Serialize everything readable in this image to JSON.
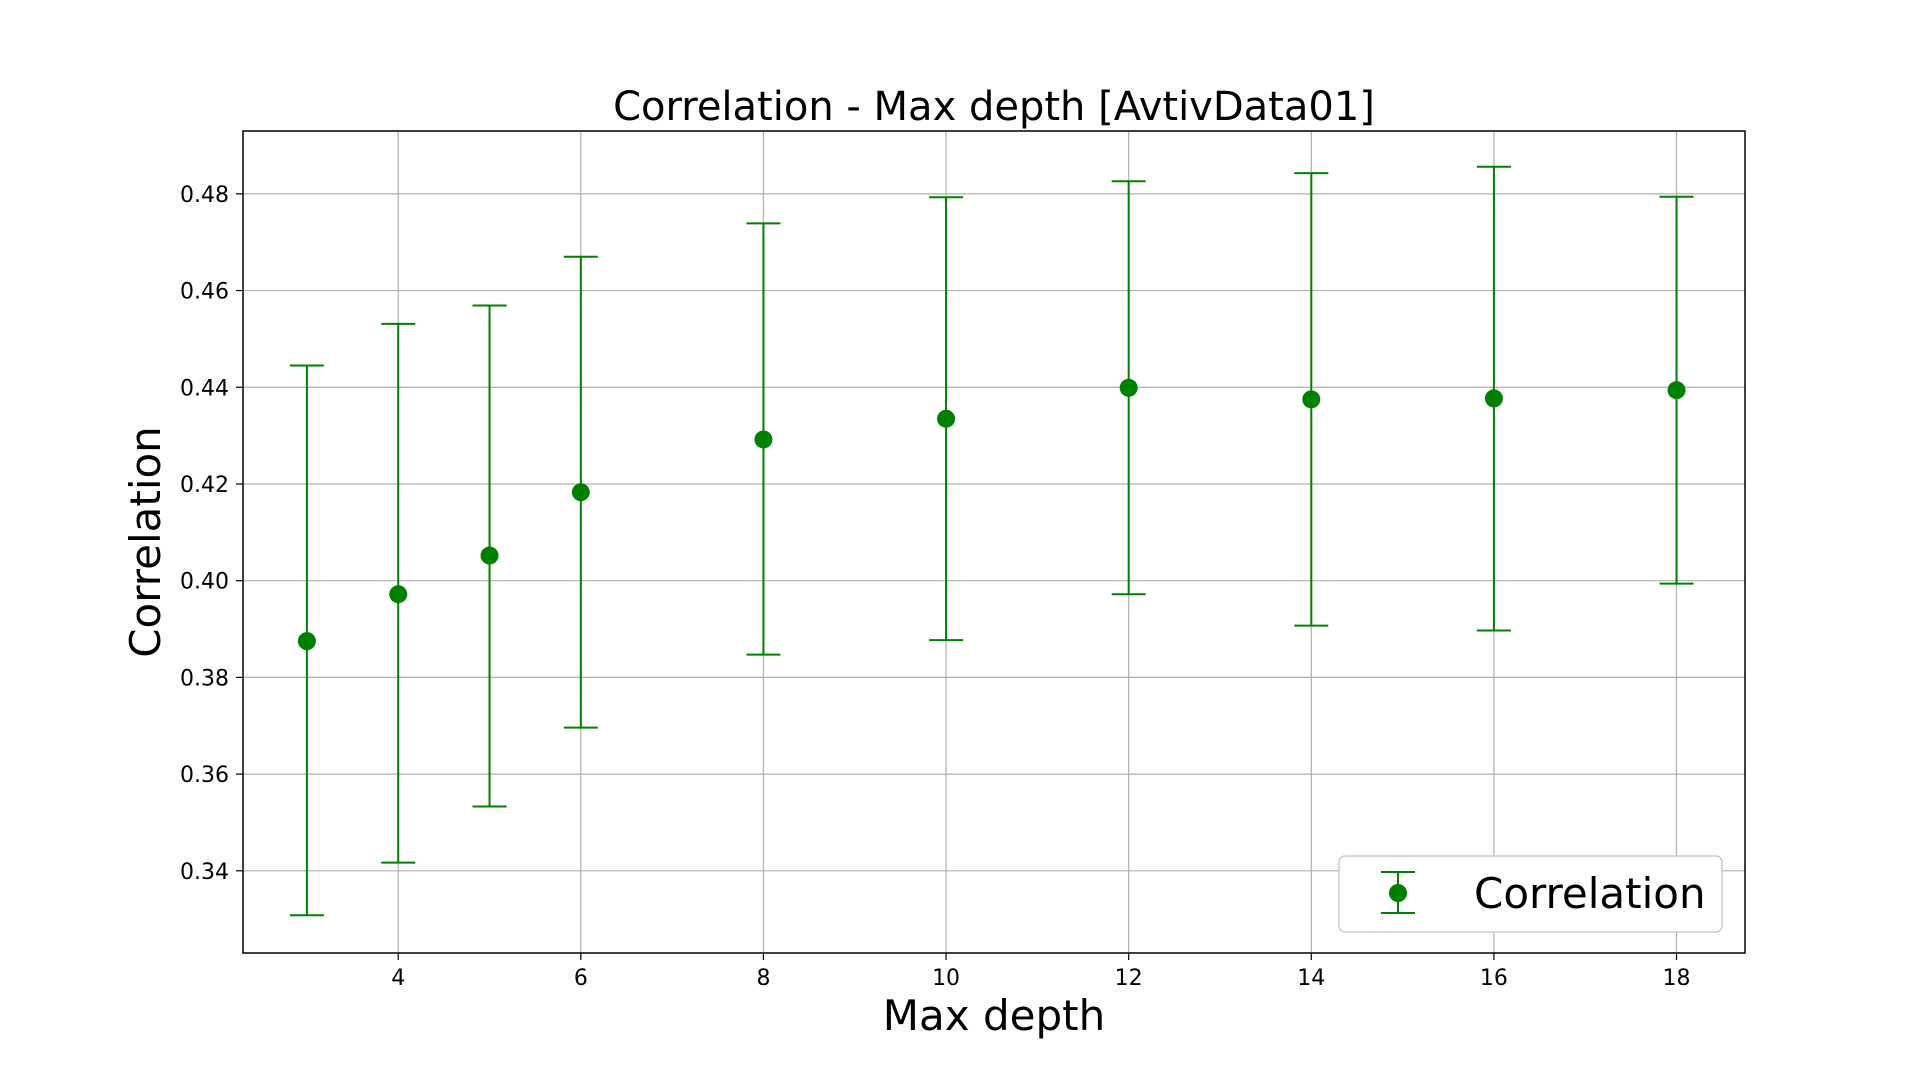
{
  "chart_data": {
    "type": "scatter",
    "title": "Correlation - Max depth  [AvtivData01]",
    "xlabel": "Max depth",
    "ylabel": "Correlation",
    "xlim": [
      2.3,
      18.75
    ],
    "ylim": [
      0.323,
      0.493
    ],
    "xticks": [
      4,
      6,
      8,
      10,
      12,
      14,
      16,
      18
    ],
    "yticks": [
      0.34,
      0.36,
      0.38,
      0.4,
      0.42,
      0.44,
      0.46,
      0.48
    ],
    "ytick_labels": [
      "0.34",
      "0.36",
      "0.38",
      "0.40",
      "0.42",
      "0.44",
      "0.46",
      "0.48"
    ],
    "grid": true,
    "legend_position": "lower-right",
    "series": [
      {
        "name": "Correlation",
        "color": "#008000",
        "marker": "circle",
        "error_bars": true,
        "x": [
          3,
          4,
          5,
          6,
          8,
          10,
          12,
          14,
          16,
          18
        ],
        "y": [
          0.3875,
          0.3972,
          0.4052,
          0.4183,
          0.4292,
          0.4335,
          0.4399,
          0.4375,
          0.4377,
          0.4394
        ],
        "y_lower": [
          0.3308,
          0.3417,
          0.3533,
          0.3696,
          0.3847,
          0.3877,
          0.3972,
          0.3907,
          0.3897,
          0.3994
        ],
        "y_upper": [
          0.4445,
          0.4531,
          0.4569,
          0.467,
          0.4739,
          0.4793,
          0.4826,
          0.4843,
          0.4856,
          0.4794
        ]
      }
    ]
  }
}
